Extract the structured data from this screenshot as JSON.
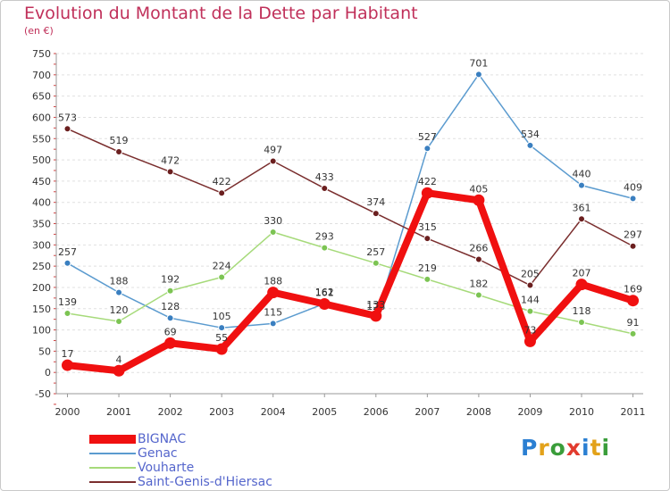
{
  "header": {
    "title": "Evolution du Montant de la Dette par Habitant",
    "unit": "(en €)"
  },
  "brand": {
    "letters": [
      "P",
      "r",
      "o",
      "x",
      "i",
      "t",
      "i"
    ],
    "colors": [
      "#2b7fd2",
      "#e3a21a",
      "#3a9d3a",
      "#e23b2e",
      "#2b7fd2",
      "#e3a21a",
      "#3a9d3a"
    ]
  },
  "chart_data": {
    "type": "line",
    "title": "Evolution du Montant de la Dette par Habitant",
    "ylabel": "(en €)",
    "xlabel": "",
    "ylim": [
      -50,
      750
    ],
    "yticks": [
      -50,
      0,
      50,
      100,
      150,
      200,
      250,
      300,
      350,
      400,
      450,
      500,
      550,
      600,
      650,
      700,
      750
    ],
    "grid": "horizontal dashed",
    "legend_position": "bottom-left",
    "categories": [
      "2000",
      "2001",
      "2002",
      "2003",
      "2004",
      "2005",
      "2006",
      "2007",
      "2008",
      "2009",
      "2010",
      "2011"
    ],
    "series": [
      {
        "name": "Genac",
        "color": "#5b9bcf",
        "point_color": "#3a7fc0",
        "emphasis": false,
        "values": [
          257,
          188,
          128,
          105,
          115,
          162,
          128,
          527,
          701,
          534,
          440,
          409
        ],
        "labels": [
          "257",
          "188",
          "128",
          "105",
          "115",
          "162",
          "128",
          "527",
          "701",
          "534",
          "440",
          "409"
        ]
      },
      {
        "name": "Vouharte",
        "color": "#a6da7a",
        "point_color": "#7cc453",
        "emphasis": false,
        "values": [
          139,
          120,
          192,
          224,
          330,
          293,
          257,
          219,
          182,
          144,
          118,
          91
        ],
        "labels": [
          "139",
          "120",
          "192",
          "224",
          "330",
          "293",
          "257",
          "219",
          "182",
          "144",
          "118",
          "91"
        ]
      },
      {
        "name": "Saint-Genis-d'Hiersac",
        "color": "#7a2e2e",
        "point_color": "#6b1f1f",
        "emphasis": false,
        "values": [
          573,
          519,
          472,
          422,
          497,
          433,
          374,
          315,
          266,
          205,
          361,
          297
        ],
        "labels": [
          "573",
          "519",
          "472",
          "422",
          "497",
          "433",
          "374",
          "315",
          "266",
          "205",
          "361",
          "297"
        ]
      },
      {
        "name": "BIGNAC",
        "color": "#f01010",
        "point_color": "#f01010",
        "emphasis": true,
        "values": [
          17,
          4,
          69,
          55,
          188,
          161,
          133,
          422,
          405,
          73,
          207,
          169
        ],
        "labels": [
          "17",
          "4",
          "69",
          "55",
          "188",
          "161",
          "133",
          "422",
          "405",
          "73",
          "207",
          "169"
        ]
      }
    ],
    "legend": [
      "BIGNAC",
      "Genac",
      "Vouharte",
      "Saint-Genis-d'Hiersac"
    ]
  }
}
